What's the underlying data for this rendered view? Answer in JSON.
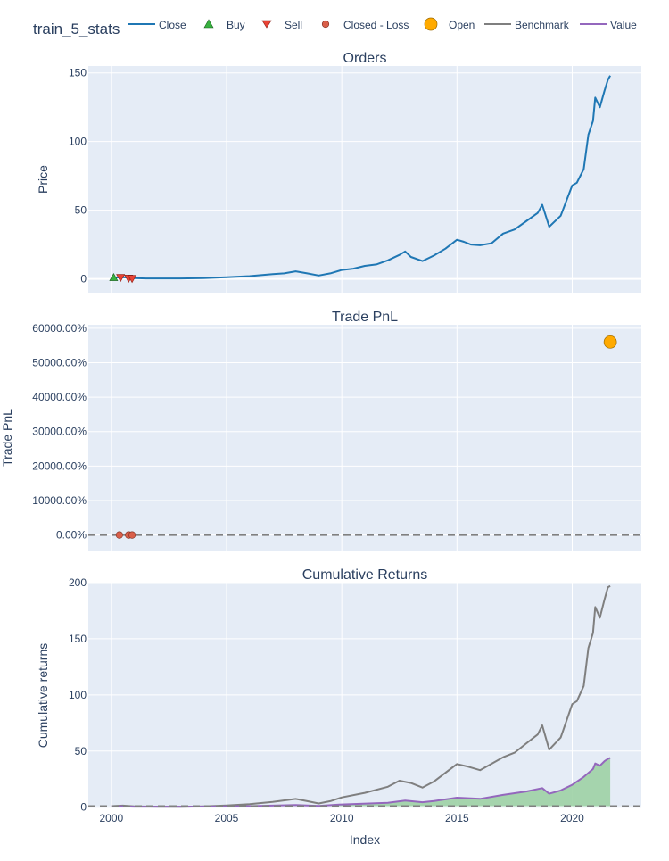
{
  "figure_title": "train_5_stats",
  "legend": [
    {
      "label": "Close",
      "symbol": "line",
      "color": "#1f77b4"
    },
    {
      "label": "Buy",
      "symbol": "triangle-up",
      "color": "#37b13f"
    },
    {
      "label": "Sell",
      "symbol": "triangle-down",
      "color": "#ea4335"
    },
    {
      "label": "Closed - Loss",
      "symbol": "circle-small",
      "color": "#d95f4a"
    },
    {
      "label": "Open",
      "symbol": "circle-large",
      "color": "#ffaa00"
    },
    {
      "label": "Benchmark",
      "symbol": "line",
      "color": "#7f7f7f"
    },
    {
      "label": "Value",
      "symbol": "line",
      "color": "#9467bd"
    }
  ],
  "colors": {
    "plot_bg": "#e5ecf6",
    "grid": "#ffffff",
    "text": "#2a3f5f",
    "close": "#1f77b4",
    "benchmark": "#7f7f7f",
    "value": "#9467bd",
    "value_fill": "#9dd1a5",
    "buy": "#37b13f",
    "sell": "#ea4335",
    "loss": "#d95f4a",
    "open": "#ffaa00",
    "zero_line": "#808080"
  },
  "chart_data": [
    {
      "type": "line",
      "title": "Orders",
      "xlabel": "",
      "ylabel": "Price",
      "xlim": [
        1999,
        2023
      ],
      "ylim": [
        -10,
        155
      ],
      "yticks": [
        0,
        50,
        100,
        150
      ],
      "ytick_labels": [
        "0",
        "50",
        "100",
        "150"
      ],
      "grid": true,
      "series": [
        {
          "name": "Close",
          "x": [
            2000.0,
            2000.5,
            2001.0,
            2001.5,
            2002.0,
            2003.0,
            2004.0,
            2005.0,
            2006.0,
            2007.0,
            2007.5,
            2008.0,
            2008.5,
            2009.0,
            2009.5,
            2010.0,
            2010.5,
            2011.0,
            2011.5,
            2012.0,
            2012.5,
            2012.75,
            2013.0,
            2013.5,
            2014.0,
            2014.5,
            2015.0,
            2015.3,
            2015.6,
            2016.0,
            2016.5,
            2017.0,
            2017.5,
            2018.0,
            2018.5,
            2018.7,
            2019.0,
            2019.5,
            2020.0,
            2020.2,
            2020.5,
            2020.7,
            2020.9,
            2021.0,
            2021.2,
            2021.4,
            2021.55,
            2021.65
          ],
          "y": [
            0.8,
            1.2,
            0.6,
            0.3,
            0.3,
            0.3,
            0.6,
            1.2,
            2.0,
            3.5,
            4.0,
            5.5,
            4.0,
            2.5,
            4.0,
            6.5,
            7.5,
            9.5,
            10.5,
            13.5,
            17.5,
            20.0,
            16.0,
            13.0,
            17.0,
            22.0,
            28.5,
            27.0,
            25.0,
            24.5,
            26.0,
            33.0,
            36.0,
            42.0,
            48.0,
            54.0,
            38.0,
            46.0,
            68.0,
            70.0,
            80.0,
            105.0,
            115.0,
            132.0,
            125.0,
            137.0,
            145.0,
            148.0
          ]
        }
      ],
      "orders": {
        "buy": [
          {
            "x": 2000.1,
            "y": 1.0
          }
        ],
        "sell": [
          {
            "x": 2000.4,
            "y": 1.0
          },
          {
            "x": 2000.75,
            "y": 0.5
          },
          {
            "x": 2000.9,
            "y": 0.3
          }
        ]
      }
    },
    {
      "type": "scatter",
      "title": "Trade PnL",
      "xlabel": "",
      "ylabel": "Trade PnL",
      "xlim": [
        1999,
        2023
      ],
      "ylim": [
        -4500,
        61000
      ],
      "yticks": [
        0,
        10000,
        20000,
        30000,
        40000,
        50000,
        60000
      ],
      "ytick_labels": [
        "0.00%",
        "10000.00%",
        "20000.00%",
        "30000.00%",
        "40000.00%",
        "50000.00%",
        "60000.00%"
      ],
      "grid": true,
      "series": [
        {
          "name": "Closed - Loss",
          "x": [
            2000.35,
            2000.75,
            2000.9
          ],
          "y": [
            0,
            0,
            0
          ]
        },
        {
          "name": "Open",
          "x": [
            2021.65
          ],
          "y": [
            56000
          ]
        }
      ]
    },
    {
      "type": "area",
      "title": "Cumulative Returns",
      "xlabel": "Index",
      "ylabel": "Cumulative returns",
      "xlim": [
        1999,
        2023
      ],
      "ylim": [
        -1,
        200
      ],
      "yticks": [
        0,
        50,
        100,
        150,
        200
      ],
      "ytick_labels": [
        "0",
        "50",
        "100",
        "150",
        "200"
      ],
      "xticks": [
        2000,
        2005,
        2010,
        2015,
        2020
      ],
      "xtick_labels": [
        "2000",
        "2005",
        "2010",
        "2015",
        "2020"
      ],
      "grid": true,
      "series": [
        {
          "name": "Benchmark",
          "x": [
            2000.0,
            2000.5,
            2001.0,
            2002.0,
            2003.0,
            2004.0,
            2005.0,
            2006.0,
            2007.0,
            2008.0,
            2008.5,
            2009.0,
            2009.5,
            2010.0,
            2011.0,
            2012.0,
            2012.5,
            2013.0,
            2013.5,
            2014.0,
            2015.0,
            2015.5,
            2016.0,
            2017.0,
            2017.5,
            2018.0,
            2018.5,
            2018.7,
            2019.0,
            2019.5,
            2020.0,
            2020.2,
            2020.5,
            2020.7,
            2020.9,
            2021.0,
            2021.2,
            2021.4,
            2021.55,
            2021.65
          ],
          "y": [
            1.0,
            1.5,
            0.8,
            0.5,
            0.4,
            0.8,
            1.6,
            2.7,
            4.7,
            7.4,
            5.4,
            3.4,
            5.4,
            8.8,
            12.8,
            18.2,
            23.6,
            21.6,
            17.5,
            22.9,
            38.5,
            36.0,
            33.0,
            44.5,
            48.6,
            56.7,
            64.8,
            72.9,
            51.3,
            62.1,
            91.8,
            94.5,
            108.0,
            141.8,
            155.3,
            178.2,
            168.8,
            185.0,
            195.8,
            197.0
          ]
        },
        {
          "name": "Value",
          "x": [
            2000.0,
            2001.0,
            2002.0,
            2004.0,
            2006.0,
            2008.0,
            2009.0,
            2010.0,
            2012.0,
            2012.75,
            2013.5,
            2014.0,
            2015.0,
            2016.0,
            2017.0,
            2018.0,
            2018.7,
            2019.0,
            2019.5,
            2020.0,
            2020.5,
            2020.9,
            2021.0,
            2021.2,
            2021.4,
            2021.55,
            2021.65
          ],
          "y": [
            1.0,
            0.5,
            0.5,
            0.6,
            1.0,
            2.0,
            1.2,
            2.5,
            4.0,
            6.0,
            4.5,
            5.5,
            8.5,
            7.5,
            11.0,
            14.0,
            17.0,
            12.0,
            15.0,
            20.0,
            27.0,
            34.0,
            39.0,
            37.0,
            41.0,
            43.0,
            44.0
          ]
        }
      ]
    }
  ]
}
